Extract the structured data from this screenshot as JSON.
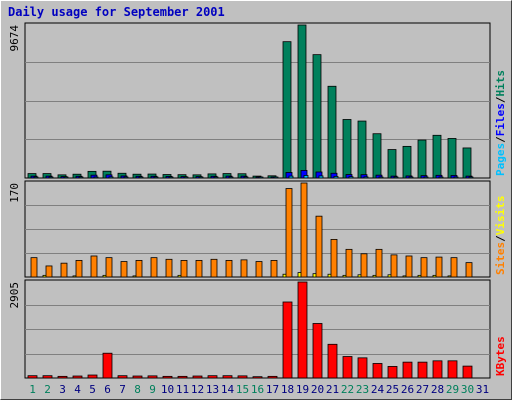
{
  "chart_data": {
    "type": "bar",
    "title": "Daily usage for September 2001",
    "categories": [
      "1",
      "2",
      "3",
      "4",
      "5",
      "6",
      "7",
      "8",
      "9",
      "10",
      "11",
      "12",
      "13",
      "14",
      "15",
      "16",
      "17",
      "18",
      "19",
      "20",
      "21",
      "22",
      "23",
      "24",
      "25",
      "26",
      "27",
      "28",
      "29",
      "30",
      "31"
    ],
    "weekend_days": [
      "1",
      "2",
      "8",
      "9",
      "15",
      "16",
      "22",
      "23",
      "29",
      "30"
    ],
    "colors": {
      "background": "#c0c0c0",
      "title": "#0000c0",
      "hits": "#00805c",
      "files": "#0000ff",
      "pages": "#00c0ff",
      "visits": "#ffff00",
      "sites": "#ff8000",
      "kbytes": "#ff0000",
      "weekday_label": "#000080",
      "weekend_label": "#00805c"
    },
    "panels": [
      {
        "max_label": "9674",
        "ylim": [
          0,
          9674
        ],
        "legend": [
          {
            "text": "Hits",
            "color": "#00805c"
          },
          {
            "text": "/",
            "color": "#000000"
          },
          {
            "text": "Files",
            "color": "#0000ff"
          },
          {
            "text": "/",
            "color": "#000000"
          },
          {
            "text": "Pages",
            "color": "#00c0ff"
          }
        ],
        "series": [
          {
            "name": "Hits",
            "color": "#00805c",
            "values": [
              280,
              280,
              200,
              240,
              420,
              430,
              300,
              240,
              250,
              220,
              210,
              200,
              260,
              280,
              270,
              120,
              140,
              8620,
              9674,
              7800,
              5800,
              3700,
              3600,
              2800,
              1800,
              2000,
              2400,
              2700,
              2500,
              1900,
              0
            ]
          },
          {
            "name": "Files",
            "color": "#0000ff",
            "values": [
              120,
              120,
              90,
              110,
              180,
              200,
              130,
              110,
              110,
              100,
              90,
              90,
              110,
              120,
              120,
              50,
              60,
              350,
              480,
              380,
              300,
              220,
              210,
              180,
              120,
              130,
              150,
              170,
              160,
              120,
              0
            ]
          },
          {
            "name": "Pages",
            "color": "#00c0ff",
            "values": [
              40,
              40,
              30,
              35,
              60,
              70,
              45,
              40,
              40,
              35,
              30,
              30,
              40,
              40,
              40,
              20,
              20,
              120,
              160,
              130,
              100,
              80,
              70,
              60,
              40,
              45,
              50,
              55,
              50,
              40,
              0
            ]
          }
        ]
      },
      {
        "max_label": "170",
        "ylim": [
          0,
          170
        ],
        "legend": [
          {
            "text": "Visits",
            "color": "#ffff00"
          },
          {
            "text": "/",
            "color": "#000000"
          },
          {
            "text": "Sites",
            "color": "#ff8000"
          }
        ],
        "series": [
          {
            "name": "Visits",
            "color": "#ffff00",
            "values": [
              0,
              3,
              0,
              2,
              0,
              3,
              0,
              2,
              0,
              0,
              3,
              0,
              0,
              0,
              0,
              0,
              0,
              5,
              8,
              6,
              5,
              3,
              4,
              3,
              4,
              2,
              3,
              3,
              2,
              0,
              0
            ]
          },
          {
            "name": "Sites",
            "color": "#ff8000",
            "values": [
              35,
              20,
              25,
              30,
              38,
              35,
              28,
              30,
              35,
              32,
              30,
              30,
              32,
              30,
              31,
              28,
              30,
              160,
              170,
              110,
              68,
              50,
              42,
              50,
              40,
              38,
              35,
              36,
              35,
              26,
              0
            ]
          }
        ]
      },
      {
        "max_label": "2905",
        "ylim": [
          0,
          2905
        ],
        "legend": [
          {
            "text": "KBytes",
            "color": "#ff0000"
          }
        ],
        "series": [
          {
            "name": "KBytes",
            "color": "#ff0000",
            "values": [
              70,
              70,
              50,
              60,
              90,
              750,
              70,
              60,
              65,
              50,
              50,
              60,
              70,
              70,
              65,
              40,
              50,
              2300,
              2905,
              1650,
              1020,
              650,
              610,
              440,
              350,
              480,
              480,
              520,
              520,
              360,
              0
            ]
          }
        ]
      }
    ]
  }
}
